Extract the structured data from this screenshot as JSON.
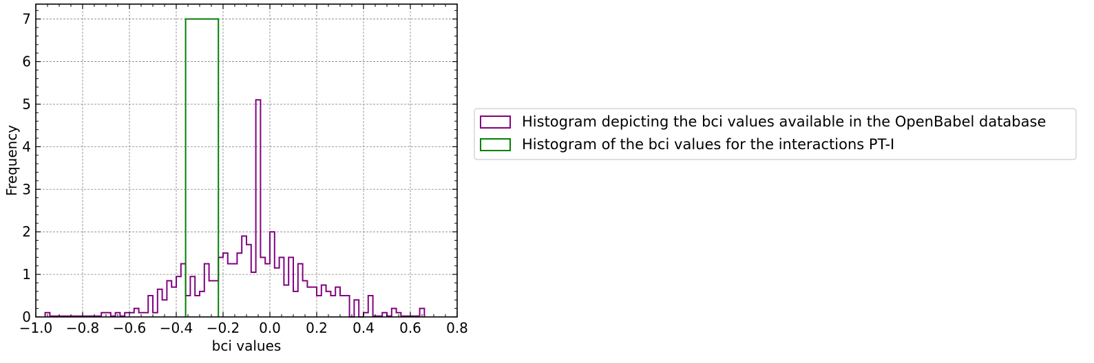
{
  "chart_data": {
    "type": "histogram",
    "xlabel": "bci values",
    "ylabel": "Frequency",
    "xlim": [
      -1.0,
      0.8
    ],
    "ylim": [
      0,
      7.35
    ],
    "xticks": [
      -1.0,
      -0.8,
      -0.6,
      -0.4,
      -0.2,
      0.0,
      0.2,
      0.4,
      0.6,
      0.8
    ],
    "xtick_labels": [
      "−1.0",
      "−0.8",
      "−0.6",
      "−0.4",
      "−0.2",
      "0.0",
      "0.2",
      "0.4",
      "0.6",
      "0.8"
    ],
    "yticks": [
      0,
      1,
      2,
      3,
      4,
      5,
      6,
      7
    ],
    "ytick_labels": [
      "0",
      "1",
      "2",
      "3",
      "4",
      "5",
      "6",
      "7"
    ],
    "grid": true,
    "legend_position": "right-outside",
    "series": [
      {
        "name": "Histogram depicting the bci values available in the OpenBabel database",
        "color": "#800080",
        "bin_width": 0.02,
        "bins": [
          [
            -0.96,
            0.1
          ],
          [
            -0.94,
            0.02
          ],
          [
            -0.92,
            0.02
          ],
          [
            -0.9,
            0.02
          ],
          [
            -0.88,
            0.02
          ],
          [
            -0.86,
            0.02
          ],
          [
            -0.84,
            0.02
          ],
          [
            -0.82,
            0.02
          ],
          [
            -0.8,
            0.02
          ],
          [
            -0.78,
            0.02
          ],
          [
            -0.76,
            0.02
          ],
          [
            -0.74,
            0.02
          ],
          [
            -0.72,
            0.1
          ],
          [
            -0.7,
            0.1
          ],
          [
            -0.68,
            0.02
          ],
          [
            -0.66,
            0.1
          ],
          [
            -0.64,
            0.02
          ],
          [
            -0.62,
            0.1
          ],
          [
            -0.6,
            0.1
          ],
          [
            -0.58,
            0.2
          ],
          [
            -0.56,
            0.1
          ],
          [
            -0.54,
            0.1
          ],
          [
            -0.52,
            0.5
          ],
          [
            -0.5,
            0.1
          ],
          [
            -0.48,
            0.65
          ],
          [
            -0.46,
            0.4
          ],
          [
            -0.44,
            0.85
          ],
          [
            -0.42,
            0.7
          ],
          [
            -0.4,
            0.95
          ],
          [
            -0.38,
            1.25
          ],
          [
            -0.36,
            0.5
          ],
          [
            -0.34,
            0.95
          ],
          [
            -0.32,
            0.5
          ],
          [
            -0.3,
            0.6
          ],
          [
            -0.28,
            1.25
          ],
          [
            -0.26,
            0.85
          ],
          [
            -0.24,
            0.85
          ],
          [
            -0.22,
            1.4
          ],
          [
            -0.2,
            1.5
          ],
          [
            -0.18,
            1.25
          ],
          [
            -0.16,
            1.25
          ],
          [
            -0.14,
            1.5
          ],
          [
            -0.12,
            1.9
          ],
          [
            -0.1,
            1.7
          ],
          [
            -0.08,
            1.05
          ],
          [
            -0.06,
            5.1
          ],
          [
            -0.04,
            1.4
          ],
          [
            -0.02,
            1.25
          ],
          [
            0.0,
            2.0
          ],
          [
            0.02,
            1.15
          ],
          [
            0.04,
            1.4
          ],
          [
            0.06,
            0.75
          ],
          [
            0.08,
            1.4
          ],
          [
            0.1,
            0.6
          ],
          [
            0.12,
            1.25
          ],
          [
            0.14,
            0.85
          ],
          [
            0.16,
            0.7
          ],
          [
            0.18,
            0.7
          ],
          [
            0.2,
            0.5
          ],
          [
            0.22,
            0.75
          ],
          [
            0.24,
            0.6
          ],
          [
            0.26,
            0.5
          ],
          [
            0.28,
            0.7
          ],
          [
            0.3,
            0.5
          ],
          [
            0.32,
            0.5
          ],
          [
            0.34,
            0.0
          ],
          [
            0.36,
            0.4
          ],
          [
            0.38,
            0.0
          ],
          [
            0.4,
            0.1
          ],
          [
            0.42,
            0.5
          ],
          [
            0.44,
            0.02
          ],
          [
            0.46,
            0.02
          ],
          [
            0.48,
            0.1
          ],
          [
            0.5,
            0.02
          ],
          [
            0.52,
            0.2
          ],
          [
            0.54,
            0.1
          ],
          [
            0.56,
            0.02
          ],
          [
            0.58,
            0.02
          ],
          [
            0.6,
            0.02
          ],
          [
            0.62,
            0.02
          ],
          [
            0.64,
            0.2
          ]
        ]
      },
      {
        "name": "Histogram of the bci values for the interactions PT-I",
        "color": "#008000",
        "bins_range": [
          [
            -0.36,
            -0.22,
            7
          ]
        ]
      }
    ]
  }
}
